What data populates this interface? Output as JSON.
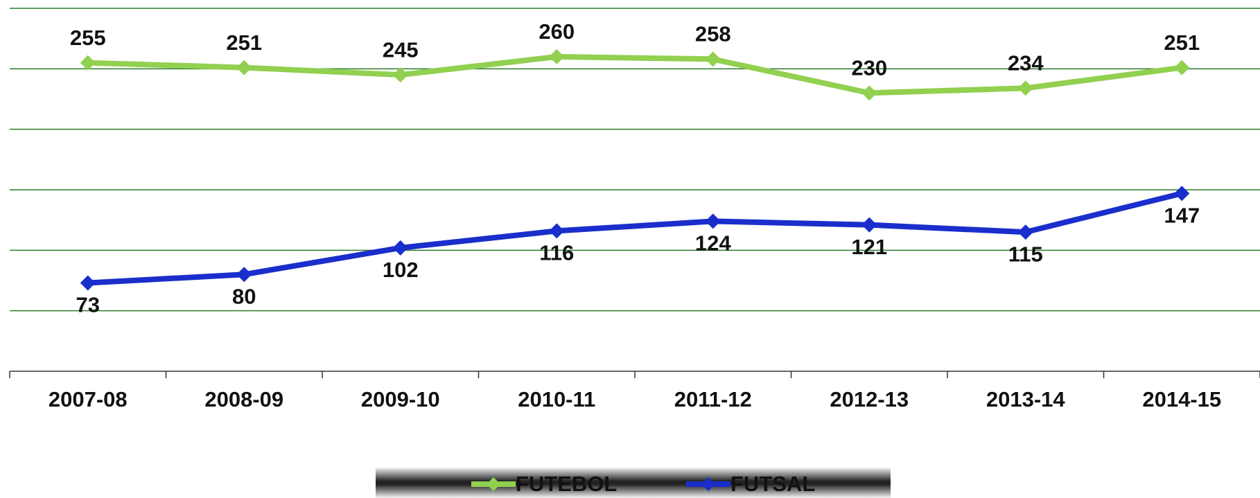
{
  "chart_data": {
    "type": "line",
    "categories": [
      "2007-08",
      "2008-09",
      "2009-10",
      "2010-11",
      "2011-12",
      "2012-13",
      "2013-14",
      "2014-15"
    ],
    "series": [
      {
        "name": "FUTEBOL",
        "color": "#92d050",
        "values": [
          255,
          251,
          245,
          260,
          258,
          230,
          234,
          251
        ]
      },
      {
        "name": "FUTSAL",
        "color": "#1a2ecc",
        "values": [
          73,
          80,
          102,
          116,
          124,
          121,
          115,
          147
        ]
      }
    ],
    "ylim": [
      0,
      300
    ],
    "yticks": [
      0,
      50,
      100,
      150,
      200,
      250,
      300
    ],
    "grid": true,
    "legend": "bottom"
  }
}
